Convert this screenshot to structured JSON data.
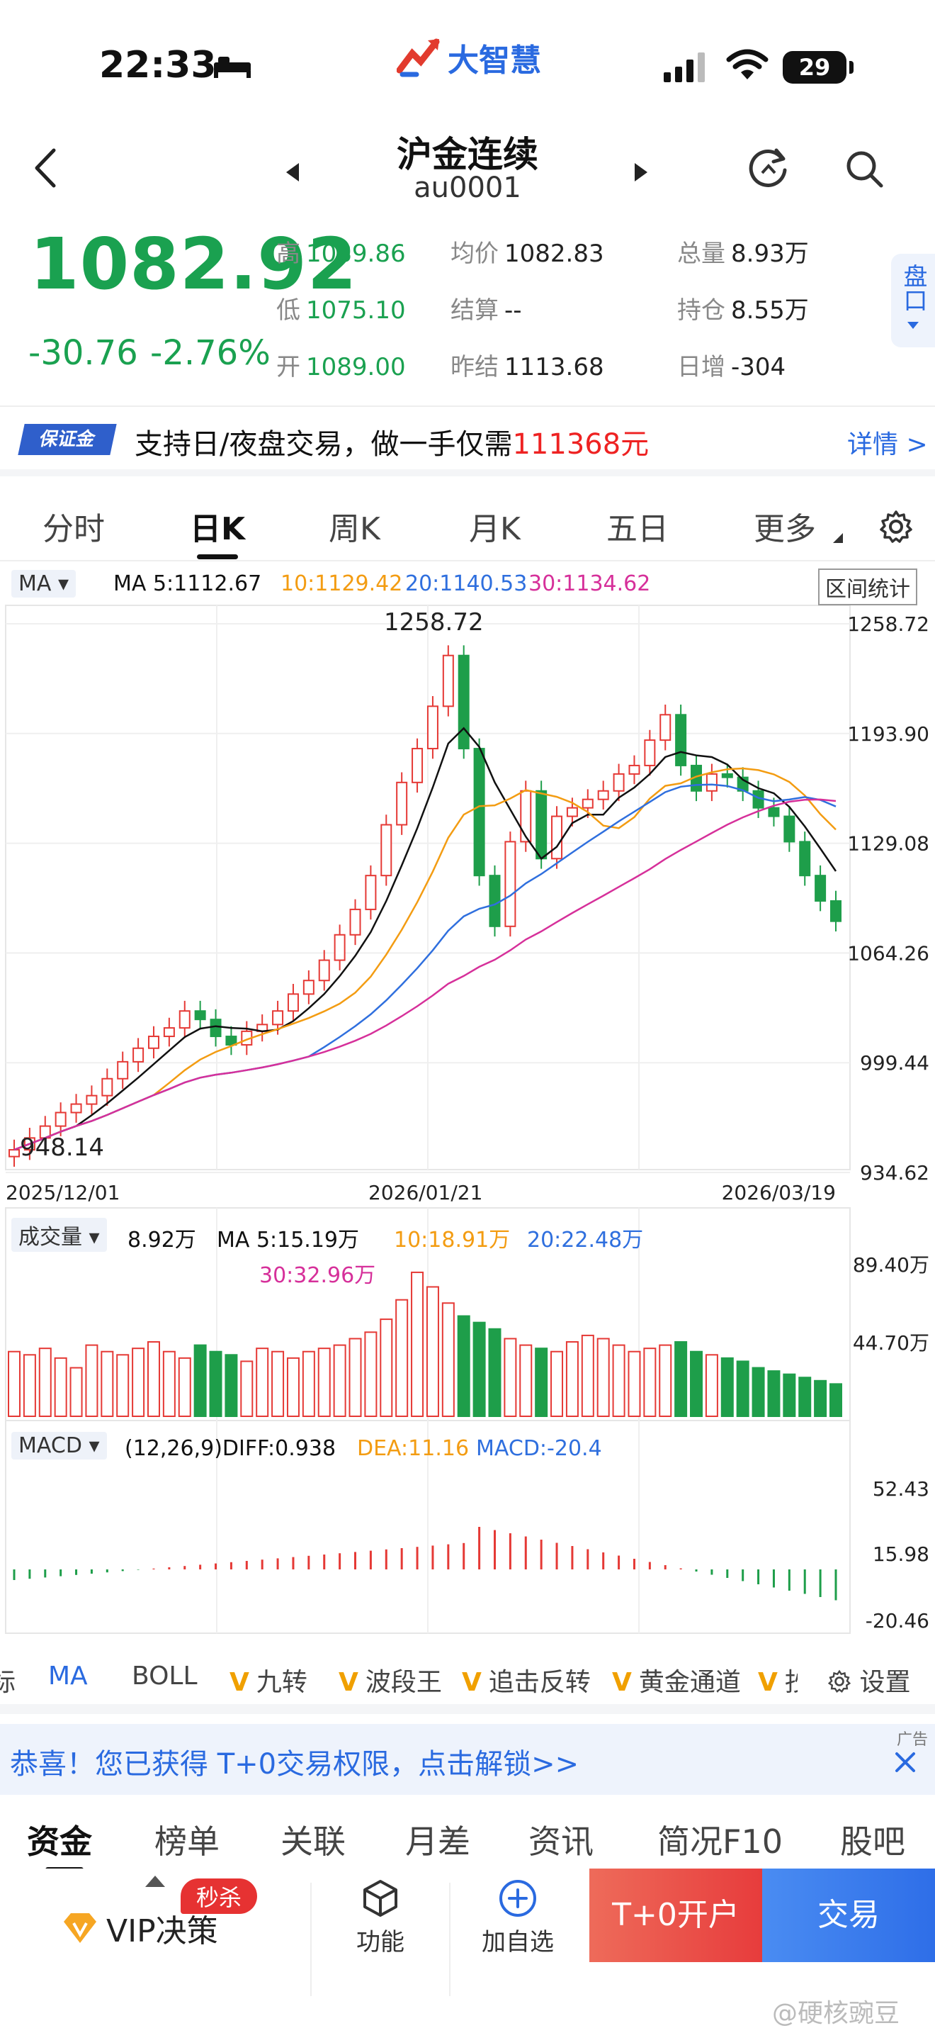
{
  "status": {
    "time": "22:33",
    "battery": "29"
  },
  "logo": {
    "text": "大智慧"
  },
  "header": {
    "title": "沪金连续",
    "code": "au0001"
  },
  "quote": {
    "price": "1082.92",
    "change": "-30.76",
    "change_pct": "-2.76%",
    "fields": [
      {
        "label": "高",
        "value": "1089.86",
        "green": true
      },
      {
        "label": "均价",
        "value": "1082.83",
        "green": false
      },
      {
        "label": "总量",
        "value": "8.93万",
        "green": false
      },
      {
        "label": "低",
        "value": "1075.10",
        "green": true
      },
      {
        "label": "结算",
        "value": "--",
        "green": false
      },
      {
        "label": "持仓",
        "value": "8.55万",
        "green": false
      },
      {
        "label": "开",
        "value": "1089.00",
        "green": true
      },
      {
        "label": "昨结",
        "value": "1113.68",
        "green": false
      },
      {
        "label": "日增",
        "value": "-304",
        "green": false
      }
    ],
    "pankou": "盘口"
  },
  "banner": {
    "tag": "保证金",
    "text": "支持日/夜盘交易，做一手仅需",
    "amount": "111368元",
    "more": "详情 >"
  },
  "tabs": [
    "分时",
    "日K",
    "周K",
    "月K",
    "五日",
    "更多"
  ],
  "chart": {
    "ma_label": "MA",
    "ma5": "MA 5:1112.67",
    "ma10": "10:1129.42",
    "ma20": "20:1140.53",
    "ma30": "30:1134.62",
    "range_btn": "区间统计",
    "high_label": "1258.72",
    "low_label": "948.14",
    "y_ticks": [
      "1258.72",
      "1193.90",
      "1129.08",
      "1064.26",
      "999.44",
      "934.62"
    ],
    "x_ticks": [
      "2025/12/01",
      "2026/01/21",
      "2026/03/19"
    ],
    "vol_label": "成交量",
    "vol_now": "8.92万",
    "vol_ma5": "MA 5:15.19万",
    "vol_ma10": "10:18.91万",
    "vol_ma20": "20:22.48万",
    "vol_ma30": "30:32.96万",
    "vol_ticks": [
      "89.40万",
      "44.70万"
    ],
    "macd_label": "MACD",
    "macd_params": "(12,26,9)DIFF:0.938",
    "dea": "DEA:11.16",
    "macd_val": "MACD:-20.4",
    "macd_ticks": [
      "52.43",
      "15.98",
      "-20.46"
    ],
    "colors": {
      "up": "#e53935",
      "down": "#1e9e4a",
      "ma5": "#111111",
      "ma10": "#f39c12",
      "ma20": "#2f6fde",
      "ma30": "#d6309a"
    }
  },
  "indicators": [
    {
      "label": "标",
      "v": false
    },
    {
      "label": "MA",
      "v": false,
      "active": true
    },
    {
      "label": "BOLL",
      "v": false
    },
    {
      "label": "九转",
      "v": true
    },
    {
      "label": "波段王",
      "v": true
    },
    {
      "label": "追击反转",
      "v": true
    },
    {
      "label": "黄金通道",
      "v": true
    },
    {
      "label": "抄",
      "v": true
    },
    {
      "label": "设置",
      "v": false
    }
  ],
  "ad": {
    "text": "恭喜！您已获得 T+0交易权限，点击解锁>>",
    "tag": "广告"
  },
  "bottom_tabs": [
    "资金",
    "榜单",
    "关联",
    "月差",
    "资讯",
    "简况F10",
    "股吧"
  ],
  "footer": {
    "vip": "VIP决策",
    "badge": "秒杀",
    "func": "功能",
    "add": "加自选",
    "t0": "T+0开户",
    "trade": "交易"
  },
  "watermark": "@硬核豌豆"
}
